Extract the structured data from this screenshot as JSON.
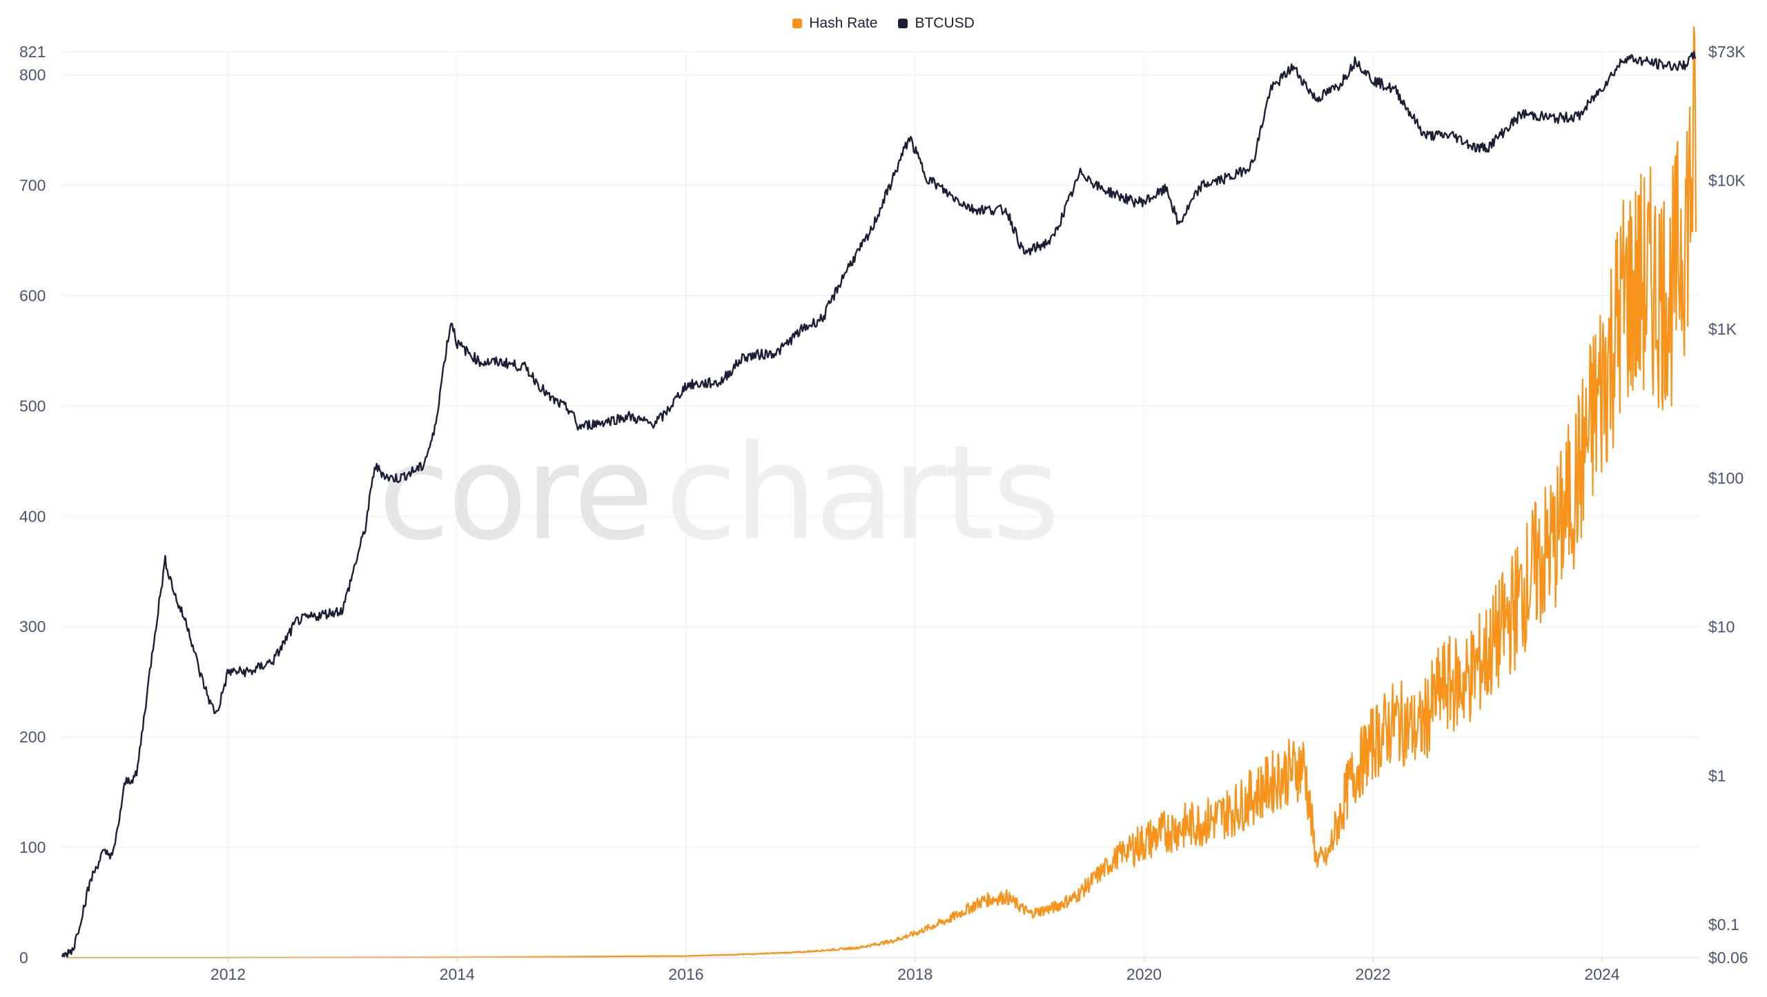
{
  "legend": {
    "hash_rate_label": "Hash Rate",
    "btcusd_label": "BTCUSD"
  },
  "watermark": {
    "part1": "core",
    "part2": "charts"
  },
  "colors": {
    "hash_rate": "#f7931a",
    "btcusd": "#1a1f36",
    "grid": "#eeeeee",
    "tick_text": "#4a5472"
  },
  "chart_data": {
    "type": "line",
    "title": "",
    "xlabel": "",
    "x_ticks": [
      "2012",
      "2014",
      "2016",
      "2018",
      "2020",
      "2022",
      "2024"
    ],
    "x_range": [
      2010.55,
      2024.85
    ],
    "left_axis": {
      "label": "Hash Rate",
      "ylim": [
        0,
        821
      ],
      "ticks": [
        "0",
        "100",
        "200",
        "300",
        "400",
        "500",
        "600",
        "700",
        "800",
        "821"
      ]
    },
    "right_axis": {
      "label": "BTCUSD",
      "scale": "log",
      "ylim": [
        0.06,
        73000
      ],
      "ticks": [
        "$0.06",
        "$0.1",
        "$1",
        "$10",
        "$100",
        "$1K",
        "$10K",
        "$73K"
      ]
    },
    "series": [
      {
        "name": "Hash Rate",
        "axis": "left",
        "x": [
          2010.6,
          2012.0,
          2014.0,
          2016.0,
          2016.5,
          2017.0,
          2017.5,
          2017.8,
          2018.0,
          2018.3,
          2018.6,
          2018.8,
          2019.0,
          2019.2,
          2019.4,
          2019.6,
          2019.8,
          2020.0,
          2020.2,
          2020.4,
          2020.6,
          2020.8,
          2021.0,
          2021.2,
          2021.4,
          2021.5,
          2021.6,
          2021.8,
          2022.0,
          2022.2,
          2022.4,
          2022.6,
          2022.8,
          2023.0,
          2023.2,
          2023.4,
          2023.6,
          2023.8,
          2024.0,
          2024.2,
          2024.4,
          2024.6,
          2024.75,
          2024.82
        ],
        "values": [
          0,
          0.1,
          0.3,
          1.5,
          3,
          5,
          9,
          15,
          22,
          35,
          52,
          55,
          40,
          45,
          55,
          75,
          95,
          105,
          115,
          120,
          125,
          135,
          150,
          165,
          175,
          90,
          90,
          160,
          195,
          215,
          205,
          245,
          250,
          275,
          310,
          350,
          380,
          440,
          520,
          600,
          610,
          600,
          680,
          740
        ]
      },
      {
        "name": "BTCUSD",
        "axis": "right",
        "x": [
          2010.55,
          2010.65,
          2010.8,
          2010.9,
          2011.0,
          2011.1,
          2011.2,
          2011.35,
          2011.45,
          2011.55,
          2011.65,
          2011.75,
          2011.85,
          2011.9,
          2012.0,
          2012.2,
          2012.4,
          2012.6,
          2012.8,
          2013.0,
          2013.2,
          2013.28,
          2013.4,
          2013.5,
          2013.7,
          2013.8,
          2013.9,
          2013.95,
          2014.0,
          2014.2,
          2014.4,
          2014.6,
          2014.8,
          2015.0,
          2015.05,
          2015.3,
          2015.5,
          2015.7,
          2015.8,
          2016.0,
          2016.3,
          2016.5,
          2016.8,
          2017.0,
          2017.2,
          2017.4,
          2017.6,
          2017.8,
          2017.95,
          2018.1,
          2018.3,
          2018.5,
          2018.8,
          2018.95,
          2019.2,
          2019.45,
          2019.6,
          2019.9,
          2020.0,
          2020.2,
          2020.3,
          2020.5,
          2020.8,
          2020.95,
          2021.1,
          2021.3,
          2021.5,
          2021.7,
          2021.85,
          2022.0,
          2022.2,
          2022.45,
          2022.7,
          2022.9,
          2023.0,
          2023.3,
          2023.6,
          2023.8,
          2024.0,
          2024.2,
          2024.5,
          2024.7,
          2024.82
        ],
        "values": [
          0.06,
          0.07,
          0.2,
          0.3,
          0.3,
          0.9,
          1.0,
          8,
          28,
          15,
          10,
          5,
          3,
          2.6,
          5,
          5,
          6,
          11,
          12,
          13,
          47,
          120,
          100,
          100,
          120,
          200,
          700,
          1150,
          800,
          600,
          600,
          550,
          350,
          280,
          220,
          240,
          260,
          230,
          260,
          420,
          440,
          650,
          700,
          980,
          1200,
          2500,
          4300,
          10000,
          19500,
          10500,
          8000,
          6400,
          6300,
          3200,
          4000,
          11500,
          9000,
          7200,
          7200,
          8800,
          5000,
          9200,
          10800,
          13000,
          40000,
          58000,
          35000,
          43000,
          64000,
          47000,
          40000,
          20000,
          20000,
          16500,
          16600,
          28000,
          26000,
          27000,
          42000,
          67000,
          60000,
          58000,
          70000
        ]
      }
    ]
  }
}
